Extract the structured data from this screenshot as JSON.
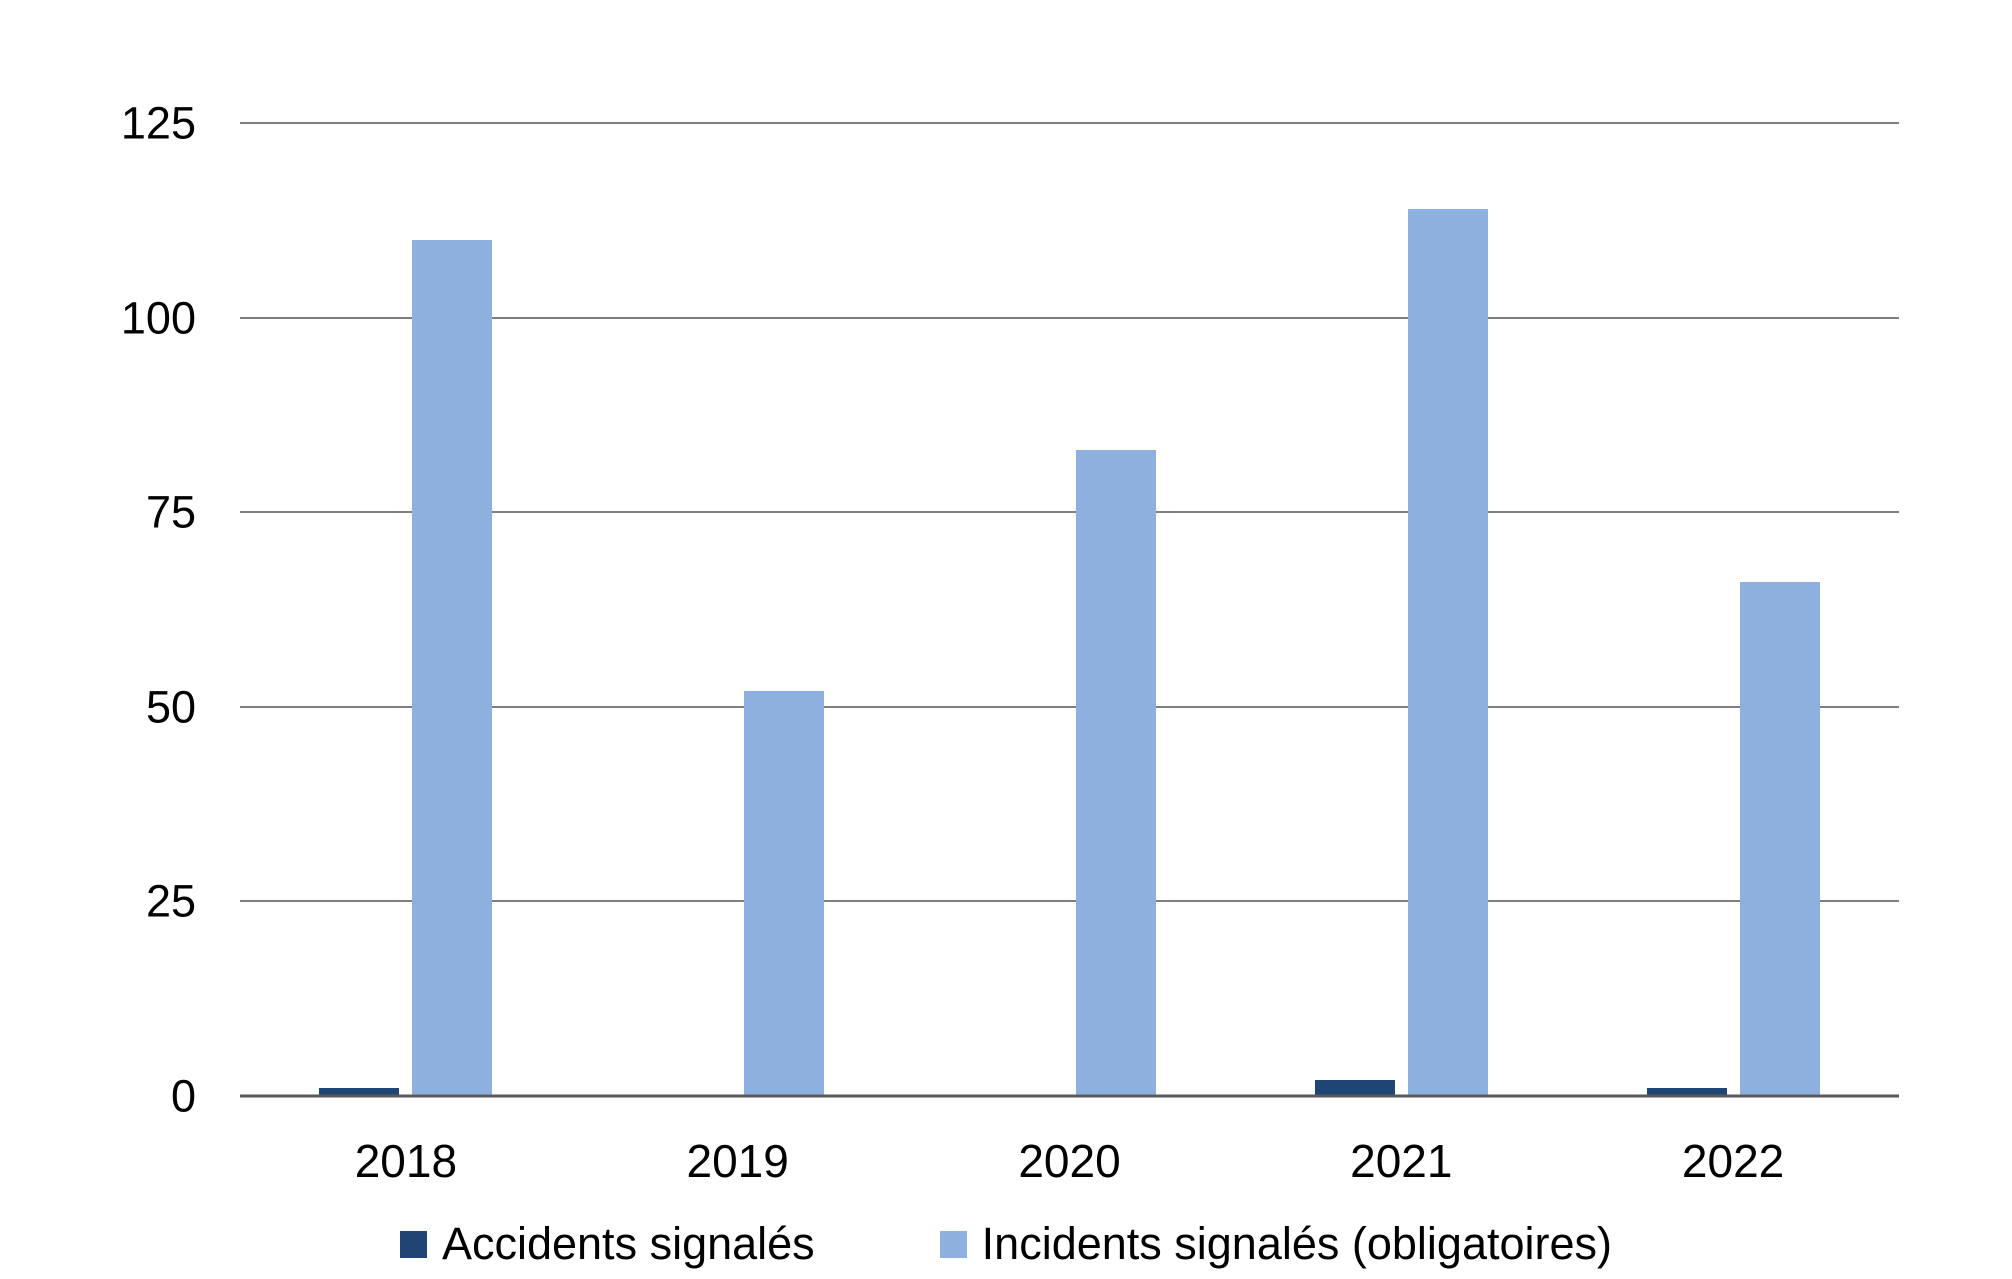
{
  "chart_data": {
    "type": "bar",
    "title": "",
    "xlabel": "",
    "ylabel": "",
    "categories": [
      "2018",
      "2019",
      "2020",
      "2021",
      "2022"
    ],
    "series": [
      {
        "name": "Accidents signalés",
        "color": "#1F4575",
        "values": [
          1,
          0,
          0,
          2,
          1
        ]
      },
      {
        "name": "Incidents signalés (obligatoires)",
        "color": "#8EB0DF",
        "values": [
          110,
          52,
          83,
          114,
          66
        ]
      }
    ],
    "ylim": [
      0,
      125
    ],
    "yticks": [
      0,
      25,
      50,
      75,
      100,
      125
    ],
    "grid": true,
    "grid_color": "#7F7F7F",
    "axis_color": "#595959",
    "text_color": "#000000",
    "legend_position": "bottom"
  }
}
